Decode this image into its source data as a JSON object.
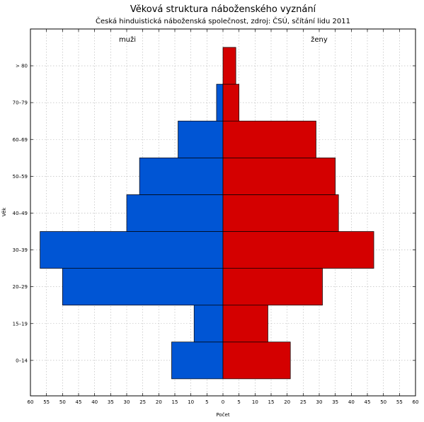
{
  "chart_data": {
    "type": "bar",
    "orientation": "horizontal",
    "layout": "population-pyramid",
    "title": "Věková struktura náboženského vyznání",
    "subtitle": "Česká hinduistická náboženská společnost, zdroj: ČSÚ, sčítání lidu 2011",
    "xlabel": "Počet",
    "ylabel": "Věk",
    "xlim": [
      -60,
      60
    ],
    "x_ticks": [
      -60,
      -55,
      -50,
      -45,
      -40,
      -35,
      -30,
      -25,
      -20,
      -15,
      -10,
      -5,
      0,
      5,
      10,
      15,
      20,
      25,
      30,
      35,
      40,
      45,
      50,
      55,
      60
    ],
    "x_tick_labels": [
      "60",
      "55",
      "50",
      "45",
      "40",
      "35",
      "30",
      "25",
      "20",
      "15",
      "10",
      "5",
      "0",
      "5",
      "10",
      "15",
      "20",
      "25",
      "30",
      "35",
      "40",
      "45",
      "50",
      "55",
      "60"
    ],
    "categories": [
      "0–14",
      "15–19",
      "20–29",
      "30–39",
      "40–49",
      "50–59",
      "60–69",
      "70–79",
      "> 80"
    ],
    "series": [
      {
        "name": "muži",
        "side": "left",
        "color": "#0055d4",
        "values": [
          16,
          9,
          50,
          57,
          30,
          26,
          14,
          2,
          0
        ]
      },
      {
        "name": "ženy",
        "side": "right",
        "color": "#d40000",
        "values": [
          21,
          14,
          31,
          47,
          36,
          35,
          29,
          5,
          4
        ]
      }
    ],
    "grid": true
  }
}
